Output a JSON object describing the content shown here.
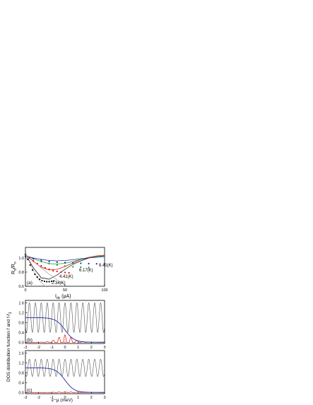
{
  "chart_data": [
    {
      "panel": "(a)",
      "type": "line",
      "ylabel_main": "R",
      "ylabel_sub1": "d",
      "ylabel_mid": "/R",
      "ylabel_sub2": "n",
      "xlabel_main": "I",
      "xlabel_sub": "dc",
      "xlabel_unit": " (μA)",
      "xlim": [
        0,
        100
      ],
      "ylim": [
        0.6,
        1.15
      ],
      "xticks": [
        "0",
        "50",
        "100"
      ],
      "yticks": [
        "0.6",
        "0.8",
        "1.0"
      ],
      "annotations": [
        "2.34(K)",
        "4.41(K)",
        "6.17(K)",
        "8.41(K)"
      ],
      "series": [
        {
          "label": "2.34(K)",
          "color": "#000000",
          "x": [
            0,
            3,
            6,
            9,
            12,
            15,
            18,
            21,
            24,
            27,
            30,
            33,
            36
          ],
          "y": [
            1.05,
            0.98,
            0.9,
            0.83,
            0.77,
            0.73,
            0.7,
            0.68,
            0.67,
            0.665,
            0.665,
            0.67,
            0.675
          ]
        },
        {
          "label": "4.41(K)",
          "color": "#e01010",
          "x": [
            0,
            5,
            10,
            15,
            20,
            25,
            30,
            35,
            40,
            45,
            50,
            55
          ],
          "y": [
            1.04,
            1.0,
            0.96,
            0.92,
            0.89,
            0.86,
            0.84,
            0.82,
            0.81,
            0.8,
            0.795,
            0.79
          ]
        },
        {
          "label": "6.17(K)",
          "color": "#10a030",
          "x": [
            0,
            10,
            20,
            30,
            40,
            50,
            60,
            70,
            80
          ],
          "y": [
            1.03,
            0.99,
            0.95,
            0.92,
            0.9,
            0.885,
            0.875,
            0.87,
            0.865
          ]
        },
        {
          "label": "8.41(K)",
          "color": "#1a2aa0",
          "x": [
            0,
            10,
            20,
            30,
            40,
            50,
            60,
            70,
            80,
            90,
            100
          ],
          "y": [
            1.02,
            0.99,
            0.97,
            0.95,
            0.94,
            0.935,
            0.93,
            0.925,
            0.92,
            0.918,
            0.915
          ]
        }
      ],
      "fits": [
        {
          "color": "#000000",
          "x": [
            0,
            10,
            20,
            30,
            40,
            50,
            60,
            70,
            80,
            90,
            100
          ],
          "y": [
            1.06,
            0.86,
            0.72,
            0.7,
            0.76,
            0.84,
            0.91,
            0.96,
            1.0,
            1.02,
            1.03
          ]
        },
        {
          "color": "#e01010",
          "x": [
            0,
            10,
            20,
            30,
            40,
            50,
            60,
            70,
            80,
            90,
            100
          ],
          "y": [
            1.05,
            0.95,
            0.87,
            0.83,
            0.84,
            0.88,
            0.93,
            0.98,
            1.01,
            1.03,
            1.04
          ]
        },
        {
          "color": "#10a030",
          "x": [
            0,
            10,
            20,
            30,
            40,
            50,
            60,
            70,
            80,
            90,
            100
          ],
          "y": [
            1.04,
            0.99,
            0.95,
            0.92,
            0.915,
            0.925,
            0.95,
            0.98,
            1.0,
            1.02,
            1.03
          ]
        },
        {
          "color": "#1a2aa0",
          "x": [
            0,
            10,
            20,
            30,
            40,
            50,
            60,
            70,
            80,
            90,
            100
          ],
          "y": [
            1.03,
            1.0,
            0.98,
            0.965,
            0.96,
            0.965,
            0.975,
            0.99,
            1.0,
            1.01,
            1.02
          ]
        },
        {
          "color": "#a0a0a0",
          "x": [
            0,
            5,
            10,
            15,
            20,
            25
          ],
          "y": [
            1.06,
            0.95,
            0.82,
            0.72,
            0.65,
            0.6
          ]
        },
        {
          "color": "#a0a0a0",
          "x": [
            0,
            10,
            20,
            30,
            40,
            50
          ],
          "y": [
            1.05,
            0.96,
            0.86,
            0.77,
            0.69,
            0.62
          ]
        }
      ]
    },
    {
      "panel": "(b)",
      "type": "line",
      "xlim": [
        -3,
        3
      ],
      "ylim": [
        -0.05,
        1.7
      ],
      "xticks": [
        "-3",
        "-2",
        "-1",
        "0",
        "1",
        "2",
        "3"
      ],
      "yticks": [
        "0.0",
        "0.4",
        "0.8",
        "1.2",
        "1.6"
      ],
      "dos_center": 1.0,
      "dos_amplitude": 0.6,
      "dos_period_meV": 0.45,
      "fermi_mu": 0.0,
      "fermi_kT_meV": 0.35,
      "red_amplitude": 0.3,
      "series_colors": {
        "dos": "#555555",
        "fermi": "#1a2aa0",
        "product": "#e01010"
      }
    },
    {
      "panel": "(c)",
      "type": "line",
      "xlim": [
        -3,
        3
      ],
      "ylim": [
        -0.05,
        1.7
      ],
      "xticks": [
        "-3",
        "-2",
        "-1",
        "0",
        "1",
        "2",
        "3"
      ],
      "yticks": [
        "0.0",
        "0.4",
        "0.8",
        "1.2",
        "1.6"
      ],
      "xlabel": "ε−μ (meV)",
      "dos_center": 1.0,
      "dos_amplitude": 0.35,
      "dos_period_meV": 0.45,
      "fermi_mu": 0.0,
      "fermi_kT_meV": 0.35,
      "red_amplitude": 0.03,
      "series_colors": {
        "dos": "#555555",
        "fermi": "#1a2aa0",
        "product": "#e01010"
      }
    }
  ],
  "shared_ylabel": "DOS distribution function f and f-f",
  "shared_ylabel_sub": "1"
}
